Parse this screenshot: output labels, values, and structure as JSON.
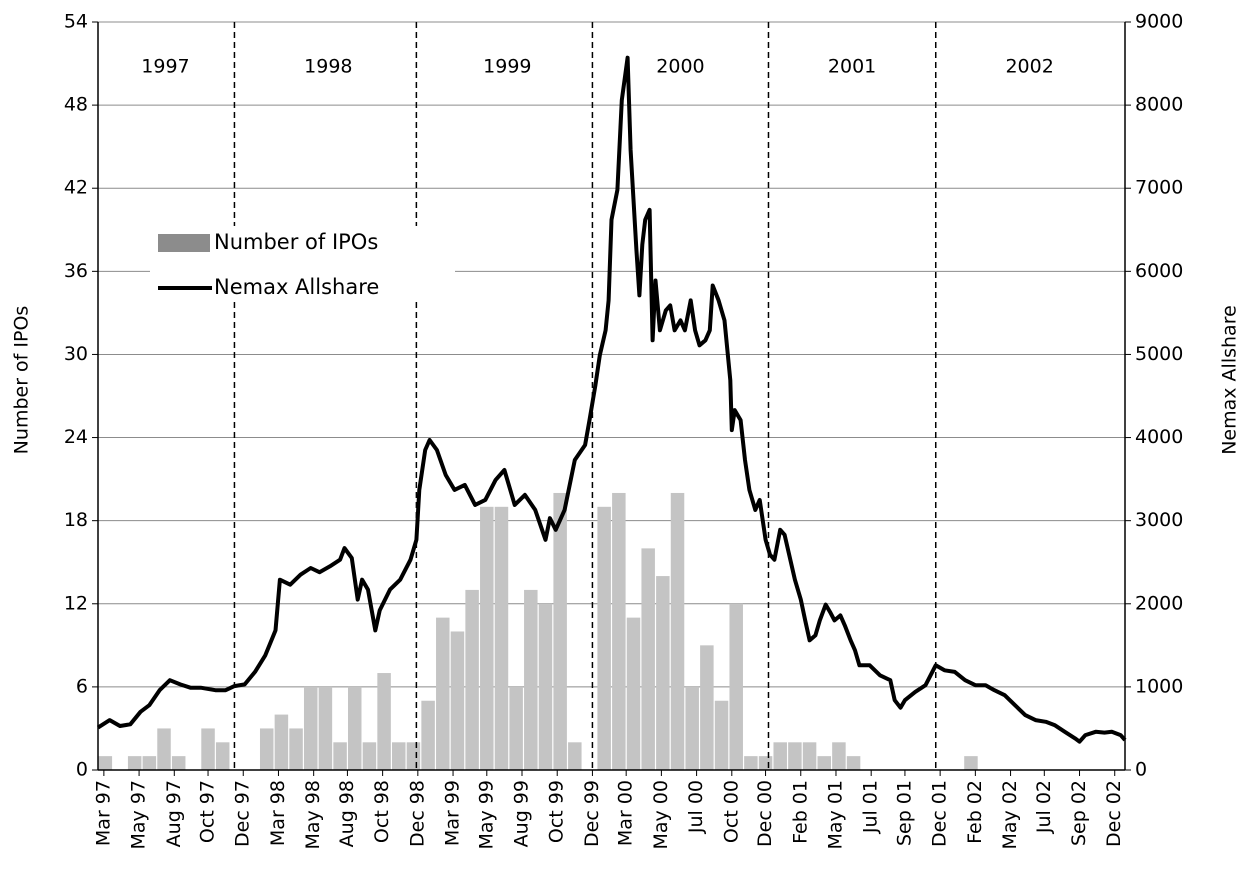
{
  "chart_data": {
    "type": "bar+line",
    "ylabel": "Number of IPOs",
    "y2label": "Nemax Allshare",
    "xlim": [
      0,
      70
    ],
    "ylim": [
      0,
      54
    ],
    "y2lim": [
      0,
      9000
    ],
    "yticks": [
      0,
      6,
      12,
      18,
      24,
      30,
      36,
      42,
      48,
      54
    ],
    "y2ticks": [
      0,
      1000,
      2000,
      3000,
      4000,
      5000,
      6000,
      7000,
      8000,
      9000
    ],
    "xticks": [
      {
        "value": 0.4,
        "label": "Mar 97"
      },
      {
        "value": 2.8,
        "label": "May 97"
      },
      {
        "value": 5.2,
        "label": "Aug 97"
      },
      {
        "value": 7.5,
        "label": "Oct 97"
      },
      {
        "value": 9.9,
        "label": "Dec 97"
      },
      {
        "value": 12.3,
        "label": "Mar 98"
      },
      {
        "value": 14.7,
        "label": "May 98"
      },
      {
        "value": 17.0,
        "label": "Aug 98"
      },
      {
        "value": 19.4,
        "label": "Oct 98"
      },
      {
        "value": 21.8,
        "label": "Dec 98"
      },
      {
        "value": 24.2,
        "label": "Mar 99"
      },
      {
        "value": 26.5,
        "label": "May 99"
      },
      {
        "value": 28.9,
        "label": "Aug 99"
      },
      {
        "value": 31.3,
        "label": "Oct 99"
      },
      {
        "value": 33.7,
        "label": "Dec 99"
      },
      {
        "value": 36.0,
        "label": "Mar 00"
      },
      {
        "value": 38.4,
        "label": "May 00"
      },
      {
        "value": 40.8,
        "label": "Jul 00"
      },
      {
        "value": 43.2,
        "label": "Oct 00"
      },
      {
        "value": 45.5,
        "label": "Dec 00"
      },
      {
        "value": 47.9,
        "label": "Feb 01"
      },
      {
        "value": 50.3,
        "label": "May 01"
      },
      {
        "value": 52.7,
        "label": "Jul 01"
      },
      {
        "value": 55.0,
        "label": "Sep 01"
      },
      {
        "value": 57.4,
        "label": "Dec 01"
      },
      {
        "value": 59.8,
        "label": "Feb 02"
      },
      {
        "value": 62.2,
        "label": "May 02"
      },
      {
        "value": 64.5,
        "label": "Jul 02"
      },
      {
        "value": 66.9,
        "label": "Sep 02"
      },
      {
        "value": 69.3,
        "label": "Dec 02"
      }
    ],
    "grid": true,
    "year_lines": [
      9.3,
      21.7,
      33.7,
      45.7,
      57.1
    ],
    "annotations": [
      {
        "text": "1997",
        "x": 4.6
      },
      {
        "text": "1998",
        "x": 15.7
      },
      {
        "text": "1999",
        "x": 27.9
      },
      {
        "text": "2000",
        "x": 39.7
      },
      {
        "text": "2001",
        "x": 51.4
      },
      {
        "text": "2002",
        "x": 63.5
      }
    ],
    "legend": "upper left",
    "series": [
      {
        "name": "Number of IPOs",
        "type": "bar",
        "color": "#c4c4c4",
        "x": [
          0.5,
          1.5,
          2.5,
          3.5,
          4.5,
          5.5,
          6.5,
          7.5,
          8.5,
          9.5,
          10.5,
          11.5,
          12.5,
          13.5,
          14.5,
          15.5,
          16.5,
          17.5,
          18.5,
          19.5,
          20.5,
          21.5,
          22.5,
          23.5,
          24.5,
          25.5,
          26.5,
          27.5,
          28.5,
          29.5,
          30.5,
          31.5,
          32.5,
          33.5,
          34.5,
          35.5,
          36.5,
          37.5,
          38.5,
          39.5,
          40.5,
          41.5,
          42.5,
          43.5,
          44.5,
          45.5,
          46.5,
          47.5,
          48.5,
          49.5,
          50.5,
          51.5,
          52.5,
          53.5,
          54.5,
          55.5,
          56.5,
          57.5,
          58.5,
          59.5,
          60.5,
          61.5,
          62.5,
          63.5,
          64.5,
          65.5,
          66.5,
          67.5,
          68.5,
          69.5
        ],
        "values": [
          1,
          0,
          1,
          1,
          3,
          1,
          0,
          3,
          2,
          0,
          0,
          3,
          4,
          3,
          6,
          6,
          2,
          6,
          2,
          7,
          2,
          2,
          5,
          11,
          10,
          13,
          19,
          19,
          6,
          13,
          12,
          20,
          2,
          0,
          19,
          20,
          11,
          16,
          14,
          20,
          6,
          9,
          5,
          12,
          1,
          1,
          2,
          2,
          2,
          1,
          2,
          1,
          0,
          0,
          0,
          0,
          0,
          0,
          0,
          1,
          0,
          0,
          0,
          0,
          0,
          0,
          0,
          0,
          0,
          0
        ]
      },
      {
        "name": "Nemax Allshare",
        "type": "line",
        "axis": "y2",
        "color": "#000000",
        "x": [
          0.0,
          0.8,
          1.5,
          2.2,
          2.9,
          3.5,
          4.2,
          4.9,
          5.6,
          6.3,
          7.0,
          8.0,
          8.7,
          9.3,
          10.0,
          10.7,
          11.4,
          12.1,
          12.4,
          13.1,
          13.8,
          14.5,
          15.1,
          15.8,
          16.5,
          16.8,
          17.3,
          17.7,
          18.0,
          18.4,
          18.9,
          19.2,
          19.9,
          20.6,
          21.3,
          21.7,
          21.9,
          22.3,
          22.6,
          23.1,
          23.7,
          24.3,
          25.0,
          25.7,
          26.4,
          27.1,
          27.7,
          28.4,
          29.1,
          29.8,
          30.5,
          30.8,
          31.2,
          31.8,
          32.5,
          33.2,
          33.5,
          33.9,
          34.2,
          34.6,
          34.8,
          35.0,
          35.4,
          35.7,
          36.1,
          36.3,
          36.5,
          36.7,
          36.9,
          37.1,
          37.3,
          37.6,
          37.8,
          38.0,
          38.3,
          38.7,
          39.0,
          39.3,
          39.7,
          40.0,
          40.4,
          40.7,
          41.0,
          41.4,
          41.7,
          41.9,
          42.3,
          42.7,
          43.1,
          43.2,
          43.4,
          43.8,
          44.1,
          44.4,
          44.8,
          45.1,
          45.5,
          45.8,
          46.1,
          46.5,
          46.8,
          47.5,
          47.9,
          48.2,
          48.5,
          48.9,
          49.2,
          49.6,
          49.9,
          50.2,
          50.6,
          50.9,
          51.3,
          51.6,
          51.9,
          52.6,
          53.3,
          54.0,
          54.3,
          54.7,
          55.0,
          55.7,
          56.4,
          57.1,
          57.7,
          58.4,
          59.1,
          59.8,
          60.5,
          61.1,
          61.8,
          62.5,
          63.2,
          63.9,
          64.6,
          65.2,
          65.9,
          66.6,
          66.9,
          67.3,
          68.0,
          68.6,
          69.1,
          69.7,
          70.0
        ],
        "values": [
          510,
          600,
          530,
          550,
          700,
          780,
          960,
          1080,
          1030,
          990,
          990,
          960,
          960,
          1010,
          1030,
          1180,
          1380,
          1680,
          2290,
          2230,
          2350,
          2430,
          2380,
          2450,
          2530,
          2670,
          2550,
          2050,
          2290,
          2170,
          1680,
          1920,
          2170,
          2290,
          2530,
          2770,
          3370,
          3850,
          3970,
          3850,
          3550,
          3370,
          3430,
          3190,
          3250,
          3490,
          3610,
          3190,
          3310,
          3130,
          2770,
          3030,
          2890,
          3130,
          3730,
          3910,
          4210,
          4630,
          4990,
          5290,
          5650,
          6620,
          6980,
          8060,
          8570,
          7460,
          6860,
          6260,
          5710,
          6320,
          6620,
          6740,
          5170,
          5890,
          5290,
          5530,
          5590,
          5290,
          5410,
          5290,
          5650,
          5290,
          5110,
          5170,
          5290,
          5830,
          5650,
          5410,
          4690,
          4090,
          4330,
          4210,
          3730,
          3370,
          3130,
          3250,
          2770,
          2590,
          2530,
          2890,
          2830,
          2290,
          2050,
          1800,
          1560,
          1620,
          1800,
          1990,
          1900,
          1800,
          1860,
          1740,
          1560,
          1440,
          1260,
          1260,
          1140,
          1080,
          840,
          750,
          840,
          940,
          1020,
          1260,
          1200,
          1180,
          1080,
          1020,
          1020,
          960,
          900,
          780,
          660,
          600,
          580,
          540,
          460,
          380,
          340,
          420,
          460,
          450,
          460,
          420,
          360
        ]
      }
    ]
  }
}
